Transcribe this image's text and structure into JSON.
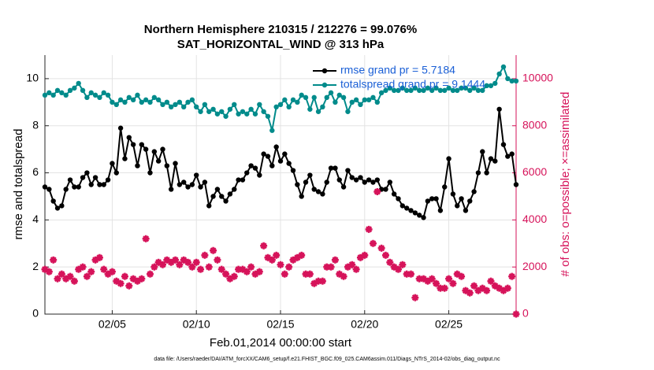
{
  "chart_data": {
    "type": "line",
    "title": "Northern Hemisphere 210315 / 212276 = 99.076%",
    "subtitle": "SAT_HORIZONTAL_WIND @ 313 hPa",
    "x_label": "Feb.01,2014 00:00:00 start",
    "y_label": "rmse and totalspread",
    "y2_label": "# of obs: o=possible; ×=assimilated",
    "footnote": "data file: /Users/raeder/DAI/ATM_forcXX/CAM6_setup/f.e21.FHIST_BGC.f09_025.CAM6assim.011/Diags_NTrS_2014-02/obs_diag_output.nc",
    "xlim": [
      1,
      29
    ],
    "xticks": [
      {
        "value": 5,
        "label": "02/05"
      },
      {
        "value": 10,
        "label": "02/10"
      },
      {
        "value": 15,
        "label": "02/15"
      },
      {
        "value": 20,
        "label": "02/20"
      },
      {
        "value": 25,
        "label": "02/25"
      }
    ],
    "ylim": [
      0,
      11
    ],
    "yticks": [
      0,
      2,
      4,
      6,
      8,
      10
    ],
    "y2lim": [
      0,
      11000
    ],
    "y2ticks": [
      0,
      2000,
      4000,
      6000,
      8000,
      10000
    ],
    "grid": true,
    "legend": "upper right",
    "x": [
      1,
      1.25,
      1.5,
      1.75,
      2,
      2.25,
      2.5,
      2.75,
      3,
      3.25,
      3.5,
      3.75,
      4,
      4.25,
      4.5,
      4.75,
      5,
      5.25,
      5.5,
      5.75,
      6,
      6.25,
      6.5,
      6.75,
      7,
      7.25,
      7.5,
      7.75,
      8,
      8.25,
      8.5,
      8.75,
      9,
      9.25,
      9.5,
      9.75,
      10,
      10.25,
      10.5,
      10.75,
      11,
      11.25,
      11.5,
      11.75,
      12,
      12.25,
      12.5,
      12.75,
      13,
      13.25,
      13.5,
      13.75,
      14,
      14.25,
      14.5,
      14.75,
      15,
      15.25,
      15.5,
      15.75,
      16,
      16.25,
      16.5,
      16.75,
      17,
      17.25,
      17.5,
      17.75,
      18,
      18.25,
      18.5,
      18.75,
      19,
      19.25,
      19.5,
      19.75,
      20,
      20.25,
      20.5,
      20.75,
      21,
      21.25,
      21.5,
      21.75,
      22,
      22.25,
      22.5,
      22.75,
      23,
      23.25,
      23.5,
      23.75,
      24,
      24.25,
      24.5,
      24.75,
      25,
      25.25,
      25.5,
      25.75,
      26,
      26.25,
      26.5,
      26.75,
      27,
      27.25,
      27.5,
      27.75,
      28,
      28.25,
      28.5,
      28.75,
      29
    ],
    "series": [
      {
        "name": "rmse grand pr = 5.7184",
        "color": "#000000",
        "marker": "circle",
        "values": [
          5.4,
          5.3,
          4.8,
          4.5,
          4.6,
          5.3,
          5.7,
          5.4,
          5.4,
          5.8,
          6.0,
          5.5,
          5.8,
          5.5,
          5.5,
          5.7,
          6.4,
          6.0,
          7.9,
          6.6,
          7.5,
          7.2,
          6.3,
          7.2,
          7.0,
          6.0,
          6.9,
          6.5,
          7.0,
          6.3,
          5.3,
          6.4,
          5.5,
          5.6,
          5.4,
          5.5,
          5.9,
          5.4,
          5.6,
          4.6,
          5.0,
          5.3,
          5.0,
          4.8,
          5.1,
          5.3,
          5.7,
          5.7,
          6.0,
          6.3,
          6.2,
          5.9,
          6.8,
          6.7,
          6.3,
          7.1,
          6.5,
          6.8,
          6.4,
          6.1,
          5.5,
          5.0,
          5.6,
          5.9,
          5.3,
          5.2,
          5.1,
          5.6,
          6.2,
          6.2,
          5.7,
          5.4,
          6.1,
          5.8,
          5.7,
          5.8,
          5.6,
          5.7,
          5.6,
          5.7,
          5.3,
          5.3,
          5.6,
          5.1,
          4.9,
          4.6,
          4.5,
          4.4,
          4.3,
          4.2,
          4.1,
          4.8,
          4.9,
          4.9,
          4.4,
          5.4,
          6.6,
          5.1,
          4.6,
          4.9,
          4.4,
          4.8,
          5.2,
          6.0,
          6.9,
          6.0,
          6.6,
          6.5,
          8.7,
          7.2,
          6.7,
          6.8,
          5.5
        ]
      },
      {
        "name": "totalspread grand pr = 9.1444",
        "color": "#008b8b",
        "marker": "circle",
        "values": [
          9.3,
          9.4,
          9.3,
          9.5,
          9.4,
          9.3,
          9.5,
          9.6,
          9.8,
          9.5,
          9.2,
          9.4,
          9.3,
          9.2,
          9.4,
          9.3,
          9.0,
          8.9,
          9.1,
          9.0,
          9.2,
          9.1,
          9.3,
          9.0,
          9.1,
          9.0,
          9.2,
          9.1,
          8.9,
          9.0,
          8.8,
          8.9,
          9.0,
          8.8,
          9.0,
          9.1,
          8.8,
          8.6,
          8.9,
          8.6,
          8.7,
          8.5,
          8.6,
          8.4,
          8.7,
          8.9,
          8.5,
          8.6,
          8.5,
          8.7,
          8.5,
          8.9,
          8.6,
          8.4,
          7.8,
          8.8,
          8.9,
          9.1,
          8.8,
          9.1,
          9.0,
          9.3,
          9.2,
          8.7,
          9.2,
          8.6,
          8.8,
          9.2,
          9.4,
          9.0,
          9.3,
          9.2,
          8.6,
          9.0,
          9.1,
          8.9,
          9.1,
          9.1,
          9.2,
          9.0,
          9.4,
          9.5,
          9.6,
          9.5,
          9.5,
          9.6,
          9.5,
          9.5,
          9.6,
          9.5,
          9.5,
          9.6,
          9.5,
          9.6,
          9.5,
          9.5,
          9.6,
          9.5,
          9.5,
          9.6,
          9.6,
          9.5,
          9.6,
          9.5,
          9.5,
          9.7,
          9.7,
          9.8,
          10.2,
          10.5,
          10.0,
          9.9,
          9.9
        ]
      },
      {
        "color": "#d6135a",
        "marker": "star",
        "axis": "y2",
        "values": [
          1900,
          1800,
          2300,
          1500,
          1700,
          1500,
          1600,
          1400,
          1900,
          2000,
          1600,
          1800,
          2300,
          2400,
          1900,
          1700,
          1800,
          1400,
          1300,
          1600,
          1200,
          1500,
          1400,
          1500,
          3200,
          1700,
          2000,
          2200,
          2100,
          2300,
          2200,
          2300,
          2100,
          2300,
          2200,
          2000,
          2200,
          1900,
          2500,
          2000,
          2700,
          2300,
          1900,
          1700,
          1500,
          1600,
          1900,
          1900,
          1800,
          2000,
          1700,
          1800,
          2900,
          2400,
          2300,
          2500,
          2100,
          1700,
          2000,
          2300,
          2400,
          2500,
          1700,
          1700,
          1300,
          1400,
          1400,
          2000,
          2000,
          2300,
          1700,
          1600,
          2000,
          2100,
          1900,
          2400,
          2500,
          3600,
          3000,
          5200,
          2800,
          2500,
          2200,
          2000,
          1900,
          2100,
          1700,
          1700,
          700,
          1500,
          1500,
          1400,
          1500,
          1300,
          1100,
          1100,
          1500,
          1300,
          1700,
          1600,
          1000,
          900,
          1200,
          1000,
          1100,
          1000,
          1400,
          1200,
          1100,
          1000,
          1100,
          1600,
          0
        ]
      }
    ]
  }
}
